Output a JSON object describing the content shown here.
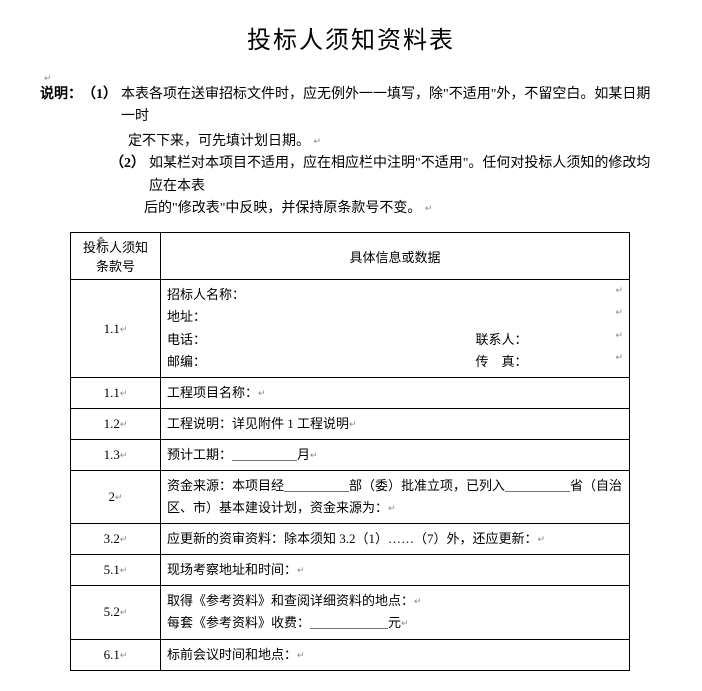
{
  "title": "投标人须知资料表",
  "notes": {
    "label": "说明：",
    "item1_num": "（1）",
    "item1_line1": "本表各项在送审招标文件时，应无例外一一填写，除\"不适用\"外，不留空白。如某日期一时",
    "item1_line2": "定不下来，可先填计划日期。",
    "item2_num": "（2）",
    "item2_line1": "如某栏对本项目不适用，应在相应栏中注明\"不适用\"。任何对投标人须知的修改均应在本表",
    "item2_line2": "后的\"修改表\"中反映，并保持原条款号不变。"
  },
  "table": {
    "header_left_l1": "投标人须知",
    "header_left_l2": "条款号",
    "header_right": "具体信息或数据",
    "rows": [
      {
        "clause": "1.1",
        "lines": [
          {
            "left": "招标人名称：",
            "right": ""
          },
          {
            "left": "地址：",
            "right": ""
          },
          {
            "left": "电话：",
            "right": "联系人："
          },
          {
            "left": "邮编：",
            "right": "传　真："
          }
        ]
      },
      {
        "clause": "1.1",
        "text": "工程项目名称："
      },
      {
        "clause": "1.2",
        "text": "工程说明：详见附件 1 工程说明"
      },
      {
        "clause": "1.3",
        "text": "预计工期：＿＿＿＿＿月"
      },
      {
        "clause": "2",
        "text": "资金来源：本项目经＿＿＿＿＿部（委）批准立项，已列入＿＿＿＿＿省（自治区、市）基本建设计划，资金来源为："
      },
      {
        "clause": "3.2",
        "text": "应更新的资审资料：除本须知 3.2（1）……（7）外，还应更新："
      },
      {
        "clause": "5.1",
        "text": "现场考察地址和时间："
      },
      {
        "clause": "5.2",
        "lines_plain": [
          "取得《参考资料》和查阅详细资料的地点：",
          "每套《参考资料》收费：＿＿＿＿＿＿元"
        ]
      },
      {
        "clause": "6.1",
        "text": "标前会议时间和地点："
      }
    ]
  }
}
